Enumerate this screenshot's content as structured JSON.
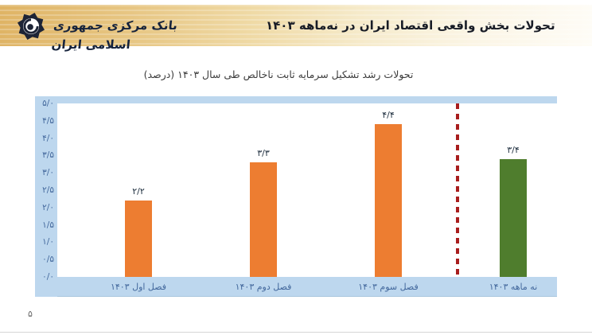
{
  "header": {
    "bank_name": "بانک مرکزی جمهوری اسلامی ایران",
    "title": "تحولات بخش واقعی اقتصاد ایران در نه‌ماهه ۱۴۰۳",
    "logo": "central-bank-of-iran-seal",
    "band_color_left": "#dfb465",
    "band_color_right": "#fefcf6"
  },
  "page": {
    "number": "۵"
  },
  "chart_data": {
    "type": "bar",
    "title": "تحولات رشد تشکیل سرمایه ثابت ناخالص طی سال ۱۴۰۳ (درصد)",
    "categories": [
      "فصل اول ۱۴۰۳",
      "فصل دوم ۱۴۰۳",
      "فصل سوم ۱۴۰۳",
      "نه ماهه ۱۴۰۳"
    ],
    "values": [
      2.2,
      3.3,
      4.4,
      3.4
    ],
    "value_labels": [
      "۲/۲",
      "۳/۳",
      "۴/۴",
      "۳/۴"
    ],
    "bar_colors": [
      "#ed7d31",
      "#ed7d31",
      "#ed7d31",
      "#4f7d2d"
    ],
    "ylim": [
      0,
      5
    ],
    "y_tick_step": 0.5,
    "y_tick_labels": [
      "۵/۰",
      "۴/۵",
      "۴/۰",
      "۳/۵",
      "۳/۰",
      "۲/۵",
      "۲/۰",
      "۱/۵",
      "۱/۰",
      "۰/۵",
      "۰/۰"
    ],
    "grid": false,
    "legend": false,
    "separator_line": {
      "position_between": [
        "فصل سوم ۱۴۰۳",
        "نه ماهه ۱۴۰۳"
      ],
      "style": "dashed",
      "color": "#a81d1d"
    },
    "axis_band_color": "#bdd7ee",
    "tick_text_color": "#44699d",
    "value_label_color": "#203040"
  }
}
